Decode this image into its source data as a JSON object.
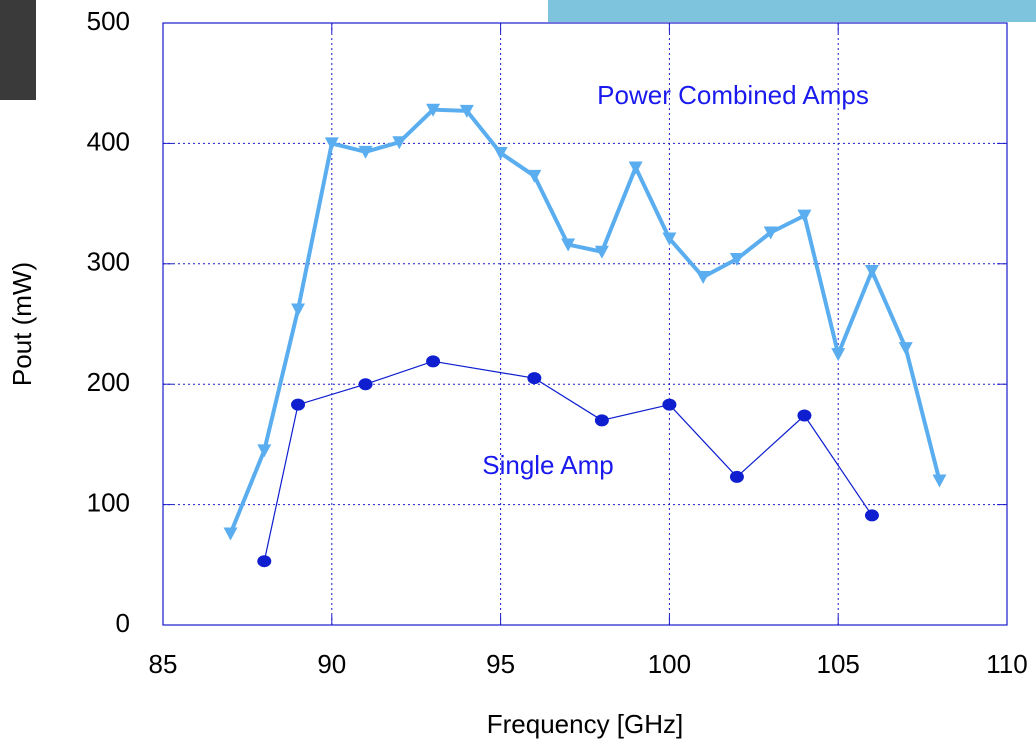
{
  "chart_data": {
    "type": "line",
    "xlabel": "Frequency [GHz]",
    "ylabel": "Pout (mW)",
    "xlim": [
      85,
      110
    ],
    "xticks": [
      85,
      90,
      95,
      100,
      105,
      110
    ],
    "ylim": [
      0,
      500
    ],
    "yticks": [
      0,
      100,
      200,
      300,
      400,
      500
    ],
    "grid": true,
    "series": [
      {
        "name": "Power Combined Amps",
        "color": "#5aaeef",
        "marker": "triangle-down",
        "x": [
          87,
          88,
          89,
          90,
          91,
          92,
          93,
          94,
          95,
          96,
          97,
          98,
          99,
          100,
          101,
          102,
          103,
          104,
          105,
          106,
          107,
          108
        ],
        "values": [
          76,
          145,
          262,
          400,
          393,
          401,
          428,
          427,
          392,
          373,
          316,
          310,
          380,
          321,
          289,
          304,
          326,
          340,
          225,
          294,
          230,
          120
        ]
      },
      {
        "name": "Single Amp",
        "color": "#0f1fd0",
        "marker": "circle",
        "x": [
          88,
          89,
          91,
          93,
          96,
          98,
          100,
          102,
          104,
          106
        ],
        "values": [
          53,
          183,
          200,
          219,
          205,
          170,
          183,
          123,
          174,
          91
        ]
      }
    ]
  }
}
